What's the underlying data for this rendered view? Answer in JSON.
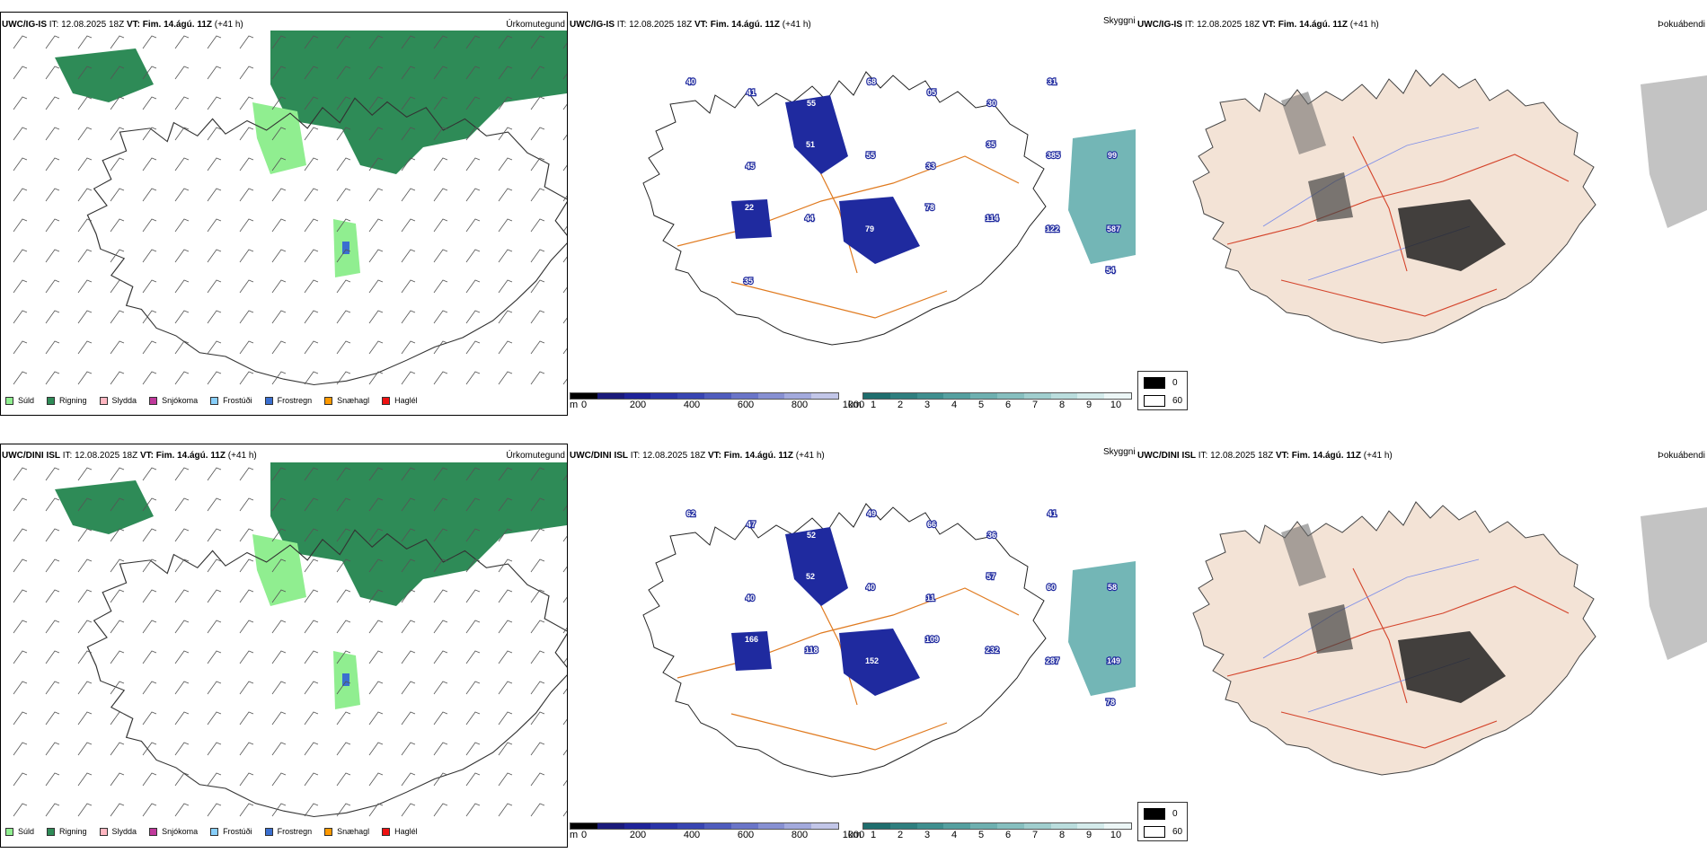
{
  "rows": [
    {
      "model": "UWC/IG-IS",
      "it_label": "IT:",
      "it_value": "12.08.2025 18Z",
      "vt_label": "VT:",
      "vt_value": "Fim. 14.ágú. 11Z",
      "lead": "(+41 h)"
    },
    {
      "model": "UWC/DINI ISL",
      "it_label": "IT:",
      "it_value": "12.08.2025 18Z",
      "vt_label": "VT:",
      "vt_value": "Fim. 14.ágú. 11Z",
      "lead": "(+41 h)"
    }
  ],
  "panel_titles": {
    "precip": "Úrkomutegund",
    "cloud": "Skyggni",
    "fog": "Þokuábendi"
  },
  "precip_legend": [
    {
      "label": "Súld",
      "color": "#90ee90"
    },
    {
      "label": "Rigning",
      "color": "#2e8b57"
    },
    {
      "label": "Slydda",
      "color": "#ffb6c1"
    },
    {
      "label": "Snjókoma",
      "color": "#c0399b"
    },
    {
      "label": "Frostúði",
      "color": "#87cefa"
    },
    {
      "label": "Frostregn",
      "color": "#3a6fd0"
    },
    {
      "label": "Snæhagl",
      "color": "#ff9900"
    },
    {
      "label": "Haglél",
      "color": "#ee1111"
    }
  ],
  "height_bar": {
    "unit": "m",
    "ticks": [
      "0",
      "200",
      "400",
      "600",
      "800",
      "1000"
    ],
    "colors": [
      "#000000",
      "#1a1a7a",
      "#1f2399",
      "#2a34a8",
      "#3845b2",
      "#4f5cbd",
      "#6a75c8",
      "#8790d2",
      "#a3aadd",
      "#c2c6e8"
    ]
  },
  "visibility_bar": {
    "unit": "km",
    "ticks": [
      "1",
      "2",
      "3",
      "4",
      "5",
      "6",
      "7",
      "8",
      "9",
      "10"
    ],
    "colors": [
      "#1f6e6e",
      "#2f7f7f",
      "#3f8f8f",
      "#55a0a0",
      "#6eb0b0",
      "#86bfbf",
      "#a0cece",
      "#badddd",
      "#d4ebeb",
      "#ecf6f6"
    ]
  },
  "fog_legend": [
    {
      "label": "0",
      "color": "#000000"
    },
    {
      "label": "60",
      "color": "#ffffff"
    }
  ],
  "cloud_labels": [
    [
      "40",
      "41",
      "55",
      "68",
      "05",
      "30",
      "31",
      "99",
      "45",
      "51",
      "55",
      "33",
      "35",
      "385",
      "587",
      "22",
      "44",
      "79",
      "78",
      "114",
      "122",
      "54",
      "35"
    ],
    [
      "62",
      "47",
      "52",
      "49",
      "66",
      "36",
      "41",
      "58",
      "40",
      "52",
      "40",
      "11",
      "57",
      "60",
      "149",
      "166",
      "118",
      "152",
      "109",
      "232",
      "287",
      "78"
    ]
  ],
  "colors": {
    "rain": "#2e8b57",
    "drizzle": "#90ee90",
    "freezing_rain": "#3a6fd0",
    "cloud_base": "#1f2a9f",
    "visibility": "#5aa9a9",
    "road": "#e07a1f",
    "land": "#f3e3d6",
    "rivers": "#7f8fe8"
  }
}
